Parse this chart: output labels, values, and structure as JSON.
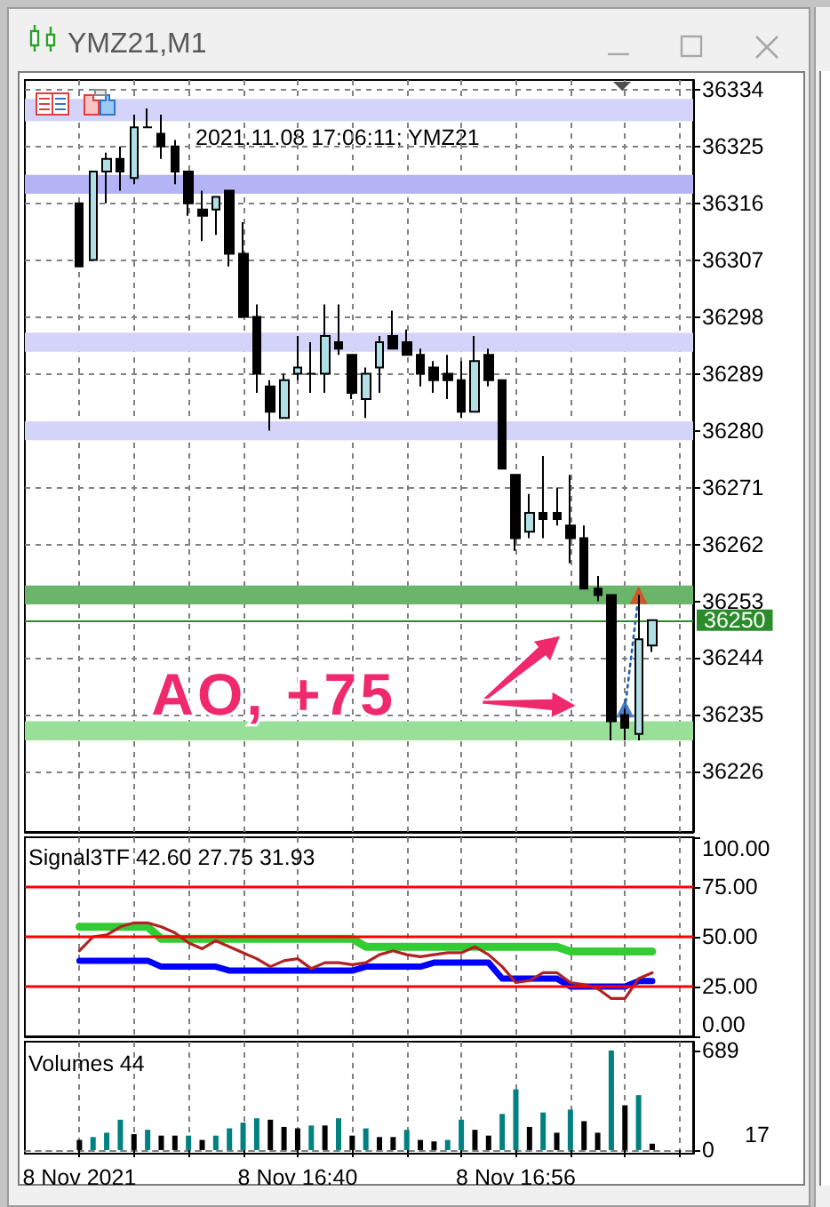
{
  "chart_data": [
    {
      "type": "candlestick",
      "title": "YMZ21,M1",
      "x": [
        "2021-11-08T16:24",
        "2021-11-08T16:25",
        "2021-11-08T16:26",
        "2021-11-08T16:27",
        "2021-11-08T16:28",
        "2021-11-08T16:29",
        "2021-11-08T16:30",
        "2021-11-08T16:31",
        "2021-11-08T16:32",
        "2021-11-08T16:33",
        "2021-11-08T16:34",
        "2021-11-08T16:35",
        "2021-11-08T16:36",
        "2021-11-08T16:37",
        "2021-11-08T16:38",
        "2021-11-08T16:39",
        "2021-11-08T16:40",
        "2021-11-08T16:41",
        "2021-11-08T16:42",
        "2021-11-08T16:43",
        "2021-11-08T16:44",
        "2021-11-08T16:45",
        "2021-11-08T16:46",
        "2021-11-08T16:47",
        "2021-11-08T16:48",
        "2021-11-08T16:49",
        "2021-11-08T16:50",
        "2021-11-08T16:51",
        "2021-11-08T16:52",
        "2021-11-08T16:53",
        "2021-11-08T16:54",
        "2021-11-08T16:55",
        "2021-11-08T16:56",
        "2021-11-08T16:57",
        "2021-11-08T16:58",
        "2021-11-08T16:59",
        "2021-11-08T17:00",
        "2021-11-08T17:01",
        "2021-11-08T17:02",
        "2021-11-08T17:03",
        "2021-11-08T17:04",
        "2021-11-08T17:05",
        "2021-11-08T17:06"
      ],
      "ohlc": [
        [
          36316,
          36316,
          36306,
          36306
        ],
        [
          36307,
          36321,
          36307,
          36321
        ],
        [
          36321,
          36324,
          36316,
          36323
        ],
        [
          36323,
          36325,
          36318,
          36321
        ],
        [
          36320,
          36330,
          36319,
          36328
        ],
        [
          36328,
          36331,
          36328,
          36328
        ],
        [
          36327,
          36330,
          36323,
          36325
        ],
        [
          36325,
          36326,
          36319,
          36321
        ],
        [
          36321,
          36321,
          36314,
          36316
        ],
        [
          36315,
          36318,
          36310,
          36314
        ],
        [
          36315,
          36317,
          36311,
          36317
        ],
        [
          36318,
          36318,
          36306,
          36308
        ],
        [
          36308,
          36313,
          36298,
          36298
        ],
        [
          36298,
          36300,
          36286,
          36289
        ],
        [
          36287,
          36288,
          36280,
          36283
        ],
        [
          36282,
          36289,
          36282,
          36288
        ],
        [
          36289,
          36295,
          36288,
          36290
        ],
        [
          36289,
          36294,
          36286,
          36289
        ],
        [
          36289,
          36300,
          36286,
          36295
        ],
        [
          36294,
          36300,
          36292,
          36293
        ],
        [
          36292,
          36292,
          36285,
          36286
        ],
        [
          36285,
          36290,
          36282,
          36289
        ],
        [
          36290,
          36295,
          36286,
          36294
        ],
        [
          36295,
          36299,
          36293,
          36293
        ],
        [
          36294,
          36296,
          36292,
          36292
        ],
        [
          36292,
          36293,
          36287,
          36289
        ],
        [
          36290,
          36291,
          36286,
          36288
        ],
        [
          36289,
          36292,
          36285,
          36288
        ],
        [
          36288,
          36291,
          36282,
          36283
        ],
        [
          36283,
          36295,
          36283,
          36291
        ],
        [
          36292,
          36293,
          36287,
          36288
        ],
        [
          36288,
          36288,
          36274,
          36274
        ],
        [
          36273,
          36273,
          36261,
          36263
        ],
        [
          36264,
          36270,
          36263,
          36267
        ],
        [
          36267,
          36276,
          36263,
          36266
        ],
        [
          36267,
          36271,
          36265,
          36266
        ],
        [
          36265,
          36273,
          36259,
          36263
        ],
        [
          36263,
          36265,
          36255,
          36255
        ],
        [
          36255,
          36257,
          36253,
          36254
        ],
        [
          36254,
          36254,
          36231,
          36234
        ],
        [
          36235,
          36236,
          36231,
          36233
        ],
        [
          36232,
          36254,
          36231,
          36247
        ],
        [
          36246,
          36250,
          36245,
          36250
        ]
      ],
      "colors": [
        "#000000",
        "#b0e0e6",
        "#b0e0e6",
        "#000000",
        "#b0e0e6",
        "#000000",
        "#000000",
        "#000000",
        "#000000",
        "#000000",
        "#b0e0e6",
        "#000000",
        "#000000",
        "#000000",
        "#000000",
        "#b0e0e6",
        "#b0e0e6",
        "#000000",
        "#b0e0e6",
        "#000000",
        "#000000",
        "#b0e0e6",
        "#b0e0e6",
        "#000000",
        "#000000",
        "#000000",
        "#000000",
        "#000000",
        "#000000",
        "#b0e0e6",
        "#000000",
        "#000000",
        "#000000",
        "#b0e0e6",
        "#000000",
        "#000000",
        "#000000",
        "#000000",
        "#000000",
        "#000000",
        "#000000",
        "#b0e0e6",
        "#b0e0e6"
      ],
      "series": [
        {
          "type": "scatter",
          "marker": "triangle",
          "color": "#1f5fb4",
          "x": [
            "2021-11-08T17:04"
          ],
          "values": [
            36236
          ]
        },
        {
          "type": "scatter",
          "marker": "triangle",
          "color": "#e8401c",
          "x": [
            "2021-11-08T17:05"
          ],
          "values": [
            36254
          ]
        },
        {
          "type": "line",
          "marker": "none",
          "line_style": "dotted",
          "color": "#1f5fb4",
          "x": [
            "2021-11-08T17:04",
            "2021-11-08T17:05"
          ],
          "values": [
            36236,
            36254
          ]
        }
      ],
      "xlim": [
        "2021-11-08T16:20",
        "2021-11-08T17:09"
      ],
      "xticks": [
        {
          "value": "2021-11-08T16:24",
          "label": null
        },
        {
          "value": "2021-11-08T16:28",
          "label": null
        },
        {
          "value": "2021-11-08T16:32",
          "label": null
        },
        {
          "value": "2021-11-08T16:36",
          "label": null
        },
        {
          "value": "2021-11-08T16:40",
          "label": null
        },
        {
          "value": "2021-11-08T16:44",
          "label": null
        },
        {
          "value": "2021-11-08T16:48",
          "label": null
        },
        {
          "value": "2021-11-08T16:52",
          "label": null
        },
        {
          "value": "2021-11-08T16:56",
          "label": null
        },
        {
          "value": "2021-11-08T17:00",
          "label": null
        },
        {
          "value": "2021-11-08T17:04",
          "label": null
        },
        {
          "value": "2021-11-08T17:08",
          "label": null
        }
      ],
      "ylim": [
        36216.5,
        36335.5
      ],
      "yticks": [
        36226,
        36235,
        36244,
        36253,
        36262,
        36271,
        36280,
        36289,
        36298,
        36307,
        36316,
        36325,
        36334
      ],
      "grid": true,
      "tick_labels": "y",
      "ref_lines": [
        {
          "axis": "y",
          "value": 36250,
          "label": "36250",
          "color": "#2a8c2a"
        }
      ],
      "bands": [
        {
          "axis": "y",
          "from": 36329,
          "to": 36332.5,
          "color": "#d4d4fa"
        },
        {
          "axis": "y",
          "from": 36317.5,
          "to": 36320.5,
          "color": "#b3b3f5"
        },
        {
          "axis": "y",
          "from": 36292.5,
          "to": 36295.5,
          "color": "#d4d4fa"
        },
        {
          "axis": "y",
          "from": 36278.5,
          "to": 36281.5,
          "color": "#d4d4fa"
        },
        {
          "axis": "y",
          "from": 36252.5,
          "to": 36255.5,
          "color": "#6bb56b"
        },
        {
          "axis": "y",
          "from": 36231,
          "to": 36234,
          "color": "#98e098"
        }
      ],
      "annotations": [
        "2021.11.08 17:06:11; YMZ21",
        "AO, +75"
      ]
    },
    {
      "type": "line",
      "title": "Signal3TF 42.60 27.75 31.93",
      "x": [
        "2021-11-08T16:24",
        "2021-11-08T16:25",
        "2021-11-08T16:26",
        "2021-11-08T16:27",
        "2021-11-08T16:28",
        "2021-11-08T16:29",
        "2021-11-08T16:30",
        "2021-11-08T16:31",
        "2021-11-08T16:32",
        "2021-11-08T16:33",
        "2021-11-08T16:34",
        "2021-11-08T16:35",
        "2021-11-08T16:36",
        "2021-11-08T16:37",
        "2021-11-08T16:38",
        "2021-11-08T16:39",
        "2021-11-08T16:40",
        "2021-11-08T16:41",
        "2021-11-08T16:42",
        "2021-11-08T16:43",
        "2021-11-08T16:44",
        "2021-11-08T16:45",
        "2021-11-08T16:46",
        "2021-11-08T16:47",
        "2021-11-08T16:48",
        "2021-11-08T16:49",
        "2021-11-08T16:50",
        "2021-11-08T16:51",
        "2021-11-08T16:52",
        "2021-11-08T16:53",
        "2021-11-08T16:54",
        "2021-11-08T16:55",
        "2021-11-08T16:56",
        "2021-11-08T16:57",
        "2021-11-08T16:58",
        "2021-11-08T16:59",
        "2021-11-08T17:00",
        "2021-11-08T17:01",
        "2021-11-08T17:02",
        "2021-11-08T17:03",
        "2021-11-08T17:04",
        "2021-11-08T17:05",
        "2021-11-08T17:06"
      ],
      "series": [
        {
          "color": "#32cd32",
          "values": [
            55,
            55,
            55,
            55,
            55,
            55,
            49,
            49,
            49,
            49,
            49,
            49,
            49,
            49,
            49,
            49,
            49,
            49,
            49,
            49,
            49,
            45,
            45,
            45,
            45,
            45,
            45,
            45,
            45,
            45,
            45,
            45,
            45,
            45,
            45,
            45,
            42.6,
            42.6,
            42.6,
            42.6,
            42.6,
            42.6,
            42.6
          ]
        },
        {
          "color": "#0000ff",
          "values": [
            38,
            38,
            38,
            38,
            38,
            38,
            35,
            35,
            35,
            35,
            35,
            33,
            33,
            33,
            33,
            33,
            33,
            33,
            33,
            33,
            33,
            35,
            35,
            35,
            35,
            35,
            37,
            37,
            37,
            37,
            37,
            29,
            29,
            29,
            29,
            29,
            25,
            25,
            25,
            25,
            25,
            27.75,
            27.75
          ]
        },
        {
          "color": "#b22222",
          "values": [
            43,
            50,
            51,
            55,
            57,
            57,
            55,
            52,
            47,
            44,
            48,
            45,
            42,
            39,
            35,
            38,
            39,
            34,
            37,
            37,
            36,
            37,
            41,
            43,
            41,
            40,
            41,
            42,
            42,
            45,
            41,
            35,
            27,
            28,
            32,
            32,
            27,
            26,
            24,
            19,
            19,
            29,
            31.93
          ]
        }
      ],
      "marker": "none",
      "xlim": [
        "2021-11-08T16:20",
        "2021-11-08T17:09"
      ],
      "xticks": [
        {
          "value": "2021-11-08T16:24",
          "label": null
        },
        {
          "value": "2021-11-08T16:28",
          "label": null
        },
        {
          "value": "2021-11-08T16:32",
          "label": null
        },
        {
          "value": "2021-11-08T16:36",
          "label": null
        },
        {
          "value": "2021-11-08T16:40",
          "label": null
        },
        {
          "value": "2021-11-08T16:44",
          "label": null
        },
        {
          "value": "2021-11-08T16:48",
          "label": null
        },
        {
          "value": "2021-11-08T16:52",
          "label": null
        },
        {
          "value": "2021-11-08T16:56",
          "label": null
        },
        {
          "value": "2021-11-08T17:00",
          "label": null
        },
        {
          "value": "2021-11-08T17:04",
          "label": null
        },
        {
          "value": "2021-11-08T17:08",
          "label": null
        }
      ],
      "ylim": [
        0,
        100
      ],
      "yticks": [
        {
          "value": 0,
          "label": "0.00"
        },
        {
          "value": 25,
          "label": "25.00"
        },
        {
          "value": 50,
          "label": "50.00"
        },
        {
          "value": 75,
          "label": "75.00"
        },
        {
          "value": 100,
          "label": "100.00"
        }
      ],
      "grid": "x",
      "tick_labels": "y",
      "ref_lines": [
        {
          "axis": "y",
          "value": 75,
          "color": "#ff0000"
        },
        {
          "axis": "y",
          "value": 50,
          "color": "#ff0000"
        },
        {
          "axis": "y",
          "value": 25,
          "color": "#ff0000"
        }
      ]
    },
    {
      "type": "bar",
      "title": "Volumes 44",
      "x": [
        "2021-11-08T16:24",
        "2021-11-08T16:25",
        "2021-11-08T16:26",
        "2021-11-08T16:27",
        "2021-11-08T16:28",
        "2021-11-08T16:29",
        "2021-11-08T16:30",
        "2021-11-08T16:31",
        "2021-11-08T16:32",
        "2021-11-08T16:33",
        "2021-11-08T16:34",
        "2021-11-08T16:35",
        "2021-11-08T16:36",
        "2021-11-08T16:37",
        "2021-11-08T16:38",
        "2021-11-08T16:39",
        "2021-11-08T16:40",
        "2021-11-08T16:41",
        "2021-11-08T16:42",
        "2021-11-08T16:43",
        "2021-11-08T16:44",
        "2021-11-08T16:45",
        "2021-11-08T16:46",
        "2021-11-08T16:47",
        "2021-11-08T16:48",
        "2021-11-08T16:49",
        "2021-11-08T16:50",
        "2021-11-08T16:51",
        "2021-11-08T16:52",
        "2021-11-08T16:53",
        "2021-11-08T16:54",
        "2021-11-08T16:55",
        "2021-11-08T16:56",
        "2021-11-08T16:57",
        "2021-11-08T16:58",
        "2021-11-08T16:59",
        "2021-11-08T17:00",
        "2021-11-08T17:01",
        "2021-11-08T17:02",
        "2021-11-08T17:03",
        "2021-11-08T17:04",
        "2021-11-08T17:05",
        "2021-11-08T17:06"
      ],
      "values": [
        70,
        90,
        120,
        210,
        110,
        140,
        100,
        100,
        100,
        70,
        100,
        150,
        190,
        220,
        210,
        160,
        150,
        170,
        170,
        220,
        100,
        150,
        90,
        90,
        140,
        70,
        60,
        70,
        210,
        140,
        100,
        250,
        420,
        160,
        260,
        120,
        280,
        200,
        120,
        689,
        310,
        380,
        44
      ],
      "colors": [
        "#000000",
        "#008080",
        "#008080",
        "#008080",
        "#000000",
        "#008080",
        "#000000",
        "#000000",
        "#008080",
        "#000000",
        "#008080",
        "#008080",
        "#008080",
        "#008080",
        "#000000",
        "#000000",
        "#000000",
        "#008080",
        "#000000",
        "#008080",
        "#000000",
        "#008080",
        "#000000",
        "#000000",
        "#008080",
        "#000000",
        "#000000",
        "#008080",
        "#008080",
        "#000000",
        "#000000",
        "#008080",
        "#008080",
        "#000000",
        "#008080",
        "#000000",
        "#008080",
        "#000000",
        "#000000",
        "#008080",
        "#000000",
        "#008080",
        "#000000"
      ],
      "xlim": [
        "2021-11-08T16:20",
        "2021-11-08T17:09"
      ],
      "xticks": [
        {
          "value": "2021-11-08T16:24",
          "label": "8 Nov 2021"
        },
        {
          "value": "2021-11-08T16:28",
          "label": null
        },
        {
          "value": "2021-11-08T16:32",
          "label": null
        },
        {
          "value": "2021-11-08T16:36",
          "label": null
        },
        {
          "value": "2021-11-08T16:40",
          "label": "8 Nov 16:40"
        },
        {
          "value": "2021-11-08T16:44",
          "label": null
        },
        {
          "value": "2021-11-08T16:48",
          "label": null
        },
        {
          "value": "2021-11-08T16:52",
          "label": null
        },
        {
          "value": "2021-11-08T16:56",
          "label": "8 Nov 16:56"
        },
        {
          "value": "2021-11-08T17:00",
          "label": null
        },
        {
          "value": "2021-11-08T17:04",
          "label": null
        },
        {
          "value": "2021-11-08T17:08",
          "label": null
        }
      ],
      "ylim": [
        -25,
        750
      ],
      "yticks": [
        0,
        689
      ],
      "grid": "x",
      "annotations": [
        "17"
      ]
    }
  ]
}
